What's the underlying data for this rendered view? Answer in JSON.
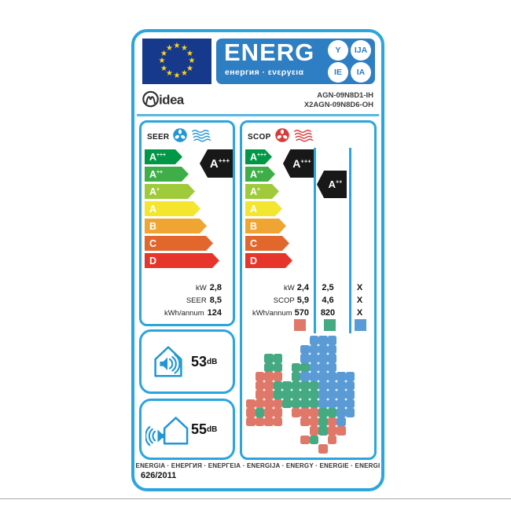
{
  "colors": {
    "label_border": "#2BA5DE",
    "banner_blue": "#2E7EC3",
    "flag_navy": "#17398C",
    "star_yellow": "#FFD617",
    "black_arrow": "#181818",
    "fan_cool": "#2196D3",
    "fan_heat": "#D63A39",
    "zone_warmer": "#E0786A",
    "zone_average": "#45A981",
    "zone_colder": "#5B9BD5"
  },
  "header": {
    "word": "ENERG",
    "subtitle": "енергия · ενεργεια",
    "circles": [
      "Y",
      "IJA",
      "IE",
      "IA"
    ],
    "flag_star": "★"
  },
  "brand": {
    "name": "idea",
    "models": [
      "AGN-09N8D1-IH",
      "X2AGN-09N8D6-OH"
    ]
  },
  "energy_classes": [
    {
      "label": "A+++",
      "color": "#009846"
    },
    {
      "label": "A++",
      "color": "#3FAE49"
    },
    {
      "label": "A+",
      "color": "#9FCB3B"
    },
    {
      "label": "A",
      "color": "#F4E52F"
    },
    {
      "label": "B",
      "color": "#F0A432"
    },
    {
      "label": "C",
      "color": "#E2672D"
    },
    {
      "label": "D",
      "color": "#E6352B"
    }
  ],
  "seer": {
    "title": "SEER",
    "rating": "A+++",
    "rows": [
      {
        "label": "kW",
        "value": "2,8"
      },
      {
        "label": "SEER",
        "value": "8,5"
      },
      {
        "label": "kWh/annum",
        "value": "124"
      }
    ]
  },
  "scop": {
    "title": "SCOP",
    "row_labels": [
      "kW",
      "SCOP",
      "kWh/annum"
    ],
    "zones": [
      {
        "name": "warmer",
        "rating": "A+++",
        "values": [
          "2,4",
          "5,9",
          "570"
        ]
      },
      {
        "name": "average",
        "rating": "A++",
        "values": [
          "2,5",
          "4,6",
          "820"
        ]
      },
      {
        "name": "colder",
        "rating": "",
        "values": [
          "X",
          "X",
          "X"
        ]
      }
    ]
  },
  "noise": {
    "indoor": {
      "value": "53",
      "unit": "dB"
    },
    "outdoor": {
      "value": "55",
      "unit": "dB"
    }
  },
  "footer": {
    "energy_words": "ENERGIA · ЕНЕРГИЯ · ΕΝΕΡΓΕΙΑ · ENERGIJA · ENERGY · ENERGIE · ENERGI",
    "regulation": "626/2011"
  },
  "climate_map": {
    "cell_codes": {
      "w": "warmer",
      "a": "average",
      "c": "colder"
    },
    "grid": [
      ".......ccc....",
      "......cccc....",
      "..aa..cccc....",
      "..aa.aaccc....",
      ".www.acccccc..",
      ".wwaaaaacccc..",
      ".wwaaaaacccc..",
      "wwwwaaaacccc..",
      "waww.wwwaacc..",
      "wwww..wwawc...",
      ".......waww...",
      "......wa.w....",
      "........w....."
    ]
  }
}
